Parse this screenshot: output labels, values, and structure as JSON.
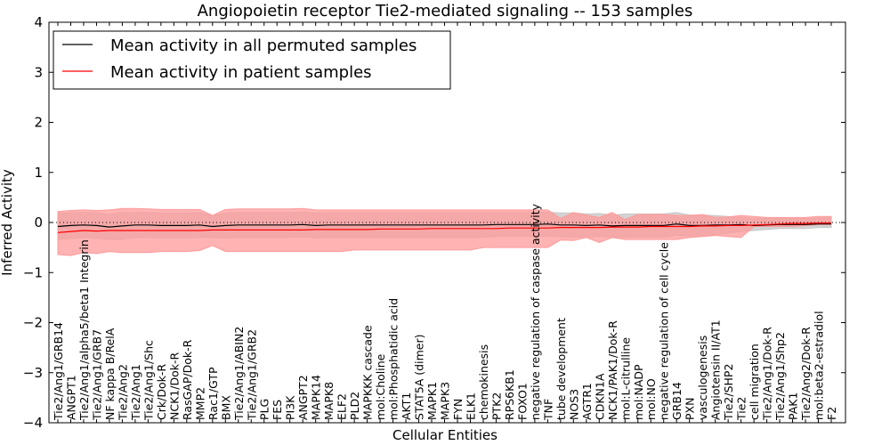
{
  "chart_data": {
    "type": "line",
    "title": "Angiopoietin receptor Tie2-mediated signaling -- 153 samples",
    "xlabel": "Cellular Entities",
    "ylabel": "Inferred Activity",
    "ylim": [
      -4,
      4
    ],
    "yticks": [
      -4,
      -3,
      -2,
      -1,
      0,
      1,
      2,
      3,
      4
    ],
    "ytick_labels": [
      "−4",
      "−3",
      "−2",
      "−1",
      "0",
      "1",
      "2",
      "3",
      "4"
    ],
    "legend_position": "top-left",
    "reference_line": 0,
    "categories": [
      "Tie2/Ang1/GRB14",
      "ANGPT1",
      "Tie2/Ang1/alpha5/beta1 Integrin",
      "Tie2/Ang1/GRB7",
      "NF kappa B/RelA",
      "Tie2/Ang2",
      "Tie2/Ang1",
      "Tie2/Ang1/Shc",
      "Crk/Dok-R",
      "NCK1/Dok-R",
      "RasGAP/Dok-R",
      "MMP2",
      "Rac1/GTP",
      "BMX",
      "Tie2/Ang1/ABIN2",
      "Tie2/Ang1/GRB2",
      "PLG",
      "FES",
      "PI3K",
      "ANGPT2",
      "MAPK14",
      "MAPK8",
      "ELF2",
      "PLD2",
      "MAPKKK cascade",
      "mol:Choline",
      "mol:Phosphatidic acid",
      "AKT1",
      "STAT5A (dimer)",
      "MAPK1",
      "MAPK3",
      "FYN",
      "ELK1",
      "chemokinesis",
      "PTK2",
      "RPS6KB1",
      "FOXO1",
      "negative regulation of caspase activity",
      "TNF",
      "tube development",
      "NOS3",
      "AGTR1",
      "CDKN1A",
      "NCK1/PAK1/Dok-R",
      "mol:L-citrulline",
      "mol:NADP",
      "mol:NO",
      "negative regulation of cell cycle",
      "GRB14",
      "PXN",
      "vasculogenesis",
      "Angiotensin II/AT1",
      "Tie2/SHP2",
      "Tie2",
      "cell migration",
      "Tie2/Ang1/Dok-R",
      "Tie2/Ang1/Shp2",
      "PAK1",
      "Tie2/Ang2/Dok-R",
      "mol:beta2-estradiol",
      "F2"
    ],
    "series": [
      {
        "name": "Mean activity in all permuted samples",
        "color": "#000000",
        "band_color": "#c8c8c8",
        "values": [
          -0.08,
          -0.06,
          -0.05,
          -0.06,
          -0.09,
          -0.07,
          -0.05,
          -0.05,
          -0.06,
          -0.06,
          -0.06,
          -0.05,
          -0.08,
          -0.06,
          -0.05,
          -0.05,
          -0.05,
          -0.05,
          -0.05,
          -0.04,
          -0.06,
          -0.05,
          -0.05,
          -0.05,
          -0.05,
          -0.05,
          -0.05,
          -0.05,
          -0.05,
          -0.05,
          -0.05,
          -0.05,
          -0.05,
          -0.05,
          -0.04,
          -0.04,
          -0.04,
          -0.04,
          -0.03,
          -0.05,
          -0.05,
          -0.06,
          -0.05,
          -0.07,
          -0.06,
          -0.06,
          -0.06,
          -0.06,
          -0.03,
          -0.06,
          -0.06,
          -0.05,
          -0.05,
          -0.04,
          -0.06,
          -0.05,
          -0.04,
          -0.04,
          -0.04,
          -0.03,
          -0.03
        ],
        "upper": [
          0.18,
          0.2,
          0.2,
          0.2,
          0.16,
          0.2,
          0.2,
          0.2,
          0.19,
          0.19,
          0.19,
          0.2,
          0.14,
          0.19,
          0.2,
          0.2,
          0.2,
          0.2,
          0.2,
          0.21,
          0.19,
          0.2,
          0.2,
          0.2,
          0.2,
          0.2,
          0.2,
          0.2,
          0.2,
          0.2,
          0.2,
          0.2,
          0.2,
          0.2,
          0.2,
          0.2,
          0.2,
          0.2,
          0.21,
          0.19,
          0.19,
          0.17,
          0.18,
          0.15,
          0.17,
          0.17,
          0.17,
          0.17,
          0.2,
          0.15,
          0.15,
          0.14,
          0.12,
          0.1,
          0.08,
          0.08,
          0.08,
          0.08,
          0.08,
          0.09,
          0.09
        ],
        "lower": [
          -0.34,
          -0.32,
          -0.3,
          -0.32,
          -0.34,
          -0.34,
          -0.3,
          -0.3,
          -0.31,
          -0.31,
          -0.31,
          -0.3,
          -0.3,
          -0.31,
          -0.3,
          -0.3,
          -0.3,
          -0.3,
          -0.3,
          -0.29,
          -0.31,
          -0.3,
          -0.3,
          -0.3,
          -0.3,
          -0.3,
          -0.3,
          -0.3,
          -0.3,
          -0.3,
          -0.3,
          -0.3,
          -0.3,
          -0.3,
          -0.28,
          -0.28,
          -0.28,
          -0.28,
          -0.27,
          -0.29,
          -0.29,
          -0.29,
          -0.28,
          -0.29,
          -0.29,
          -0.29,
          -0.29,
          -0.29,
          -0.26,
          -0.27,
          -0.27,
          -0.24,
          -0.22,
          -0.18,
          -0.16,
          -0.14,
          -0.12,
          -0.12,
          -0.12,
          -0.1,
          -0.1
        ]
      },
      {
        "name": "Mean activity in patient samples",
        "color": "#ff0000",
        "band_color": "#ff9a9a",
        "values": [
          -0.2,
          -0.18,
          -0.16,
          -0.17,
          -0.16,
          -0.16,
          -0.16,
          -0.16,
          -0.16,
          -0.16,
          -0.16,
          -0.16,
          -0.15,
          -0.15,
          -0.15,
          -0.15,
          -0.15,
          -0.15,
          -0.15,
          -0.15,
          -0.14,
          -0.14,
          -0.14,
          -0.14,
          -0.14,
          -0.13,
          -0.13,
          -0.13,
          -0.13,
          -0.12,
          -0.12,
          -0.12,
          -0.12,
          -0.12,
          -0.12,
          -0.11,
          -0.11,
          -0.11,
          -0.11,
          -0.1,
          -0.1,
          -0.1,
          -0.1,
          -0.09,
          -0.09,
          -0.09,
          -0.08,
          -0.08,
          -0.08,
          -0.08,
          -0.07,
          -0.07,
          -0.06,
          -0.06,
          -0.05,
          -0.04,
          -0.03,
          -0.02,
          -0.02,
          -0.01,
          -0.01
        ],
        "upper": [
          0.22,
          0.24,
          0.25,
          0.24,
          0.25,
          0.28,
          0.28,
          0.27,
          0.26,
          0.26,
          0.26,
          0.26,
          0.14,
          0.26,
          0.27,
          0.27,
          0.27,
          0.27,
          0.27,
          0.28,
          0.25,
          0.25,
          0.25,
          0.25,
          0.25,
          0.25,
          0.25,
          0.25,
          0.25,
          0.25,
          0.25,
          0.25,
          0.25,
          0.25,
          0.25,
          0.25,
          0.25,
          0.25,
          0.25,
          0.08,
          0.2,
          0.15,
          0.1,
          0.2,
          0.06,
          0.16,
          0.16,
          0.16,
          0.14,
          0.14,
          0.16,
          0.1,
          0.11,
          0.14,
          0.12,
          0.1,
          0.1,
          0.1,
          0.1,
          0.12,
          0.12
        ],
        "lower": [
          -0.64,
          -0.66,
          -0.6,
          -0.62,
          -0.58,
          -0.6,
          -0.6,
          -0.6,
          -0.58,
          -0.58,
          -0.58,
          -0.56,
          -0.46,
          -0.58,
          -0.58,
          -0.58,
          -0.58,
          -0.58,
          -0.58,
          -0.58,
          -0.58,
          -0.58,
          -0.58,
          -0.55,
          -0.55,
          -0.55,
          -0.55,
          -0.55,
          -0.55,
          -0.55,
          -0.55,
          -0.55,
          -0.55,
          -0.5,
          -0.5,
          -0.5,
          -0.5,
          -0.5,
          -0.5,
          -0.35,
          -0.36,
          -0.3,
          -0.4,
          -0.3,
          -0.34,
          -0.34,
          -0.34,
          -0.34,
          -0.34,
          -0.3,
          -0.28,
          -0.26,
          -0.28,
          -0.3,
          -0.08,
          -0.08,
          -0.08,
          -0.08,
          -0.06,
          -0.04,
          -0.04
        ]
      }
    ]
  }
}
